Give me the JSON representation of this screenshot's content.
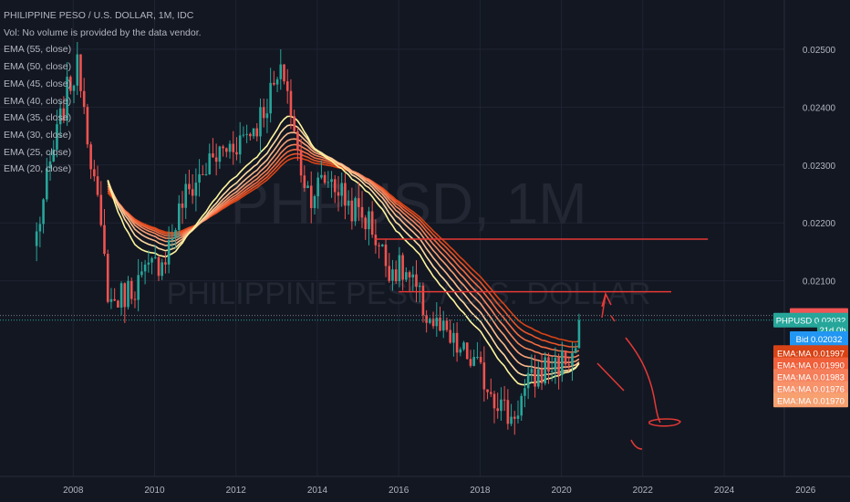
{
  "header": {
    "title": "PHILIPPINE PESO / U.S. DOLLAR, 1M, IDC",
    "volume_note": "Vol: No volume is provided by the data vendor."
  },
  "legend": {
    "items": [
      "EMA (55, close)",
      "EMA (50, close)",
      "EMA (45, close)",
      "EMA (40, close)",
      "EMA (35, close)",
      "EMA (30, close)",
      "EMA (25, close)",
      "EMA (20, close)"
    ]
  },
  "watermark": {
    "symbol": "PHPUSD, 1M",
    "name": "PHILIPPINE PESO / U.S. DOLLAR"
  },
  "colors": {
    "background": "#131722",
    "candle_up": "#26a69a",
    "candle_down": "#ef5350",
    "ema_light": "#fff59d",
    "ema_dark": "#d84315",
    "drawing": "#e53935",
    "ask": "#f05454",
    "price": "#26a69a",
    "bid": "#2196f3"
  },
  "price_labels": [
    {
      "id": "ask",
      "text": "Ask",
      "value": "0.02040",
      "color": "#f05454",
      "y_value": 0.0204
    },
    {
      "id": "last",
      "text": "PHPUSD",
      "value": "0.02032",
      "color": "#26a69a",
      "y_value": 0.02032
    },
    {
      "id": "countdown",
      "text": "21d 0h",
      "value": "",
      "color": "#26a69a",
      "y_value": 0.02016
    },
    {
      "id": "bid",
      "text": "Bid",
      "value": "0.02032",
      "color": "#2196f3",
      "y_value": 0.02
    },
    {
      "id": "ema-1",
      "text": "EMA:MA",
      "value": "0.01997",
      "color": "#d84315",
      "y_value": 0.01976
    },
    {
      "id": "ema-2",
      "text": "EMA:MA",
      "value": "0.01990",
      "color": "#f0603a",
      "y_value": 0.01955
    },
    {
      "id": "ema-3",
      "text": "EMA:MA",
      "value": "0.01983",
      "color": "#f57f5b",
      "y_value": 0.01935
    },
    {
      "id": "ema-4",
      "text": "EMA:MA",
      "value": "0.01976",
      "color": "#f7926a",
      "y_value": 0.01914
    },
    {
      "id": "ema-5",
      "text": "EMA:MA",
      "value": "0.01970",
      "color": "#f7a070",
      "y_value": 0.01894
    }
  ],
  "drawings": {
    "resistance_1": {
      "x_range": [
        2015.4,
        2023.6
      ],
      "y": 0.02172
    },
    "resistance_2": {
      "x_range": [
        2016.0,
        2022.7
      ],
      "y": 0.02081
    }
  },
  "chart_data": {
    "type": "candlestick",
    "x_axis": {
      "range": [
        2006.2,
        2026.6
      ],
      "ticks": [
        2008,
        2010,
        2012,
        2014,
        2016,
        2018,
        2020,
        2022,
        2024,
        2026
      ],
      "tick_labels": [
        "2008",
        "2010",
        "2012",
        "2014",
        "2016",
        "2018",
        "2020",
        "2022",
        "2024",
        "2026"
      ]
    },
    "y_axis": {
      "range": [
        0.01762,
        0.02585
      ],
      "ticks": [
        0.021,
        0.022,
        0.023,
        0.024,
        0.025
      ],
      "tick_labels": [
        "0.02100",
        "0.02200",
        "0.02300",
        "0.02400",
        "0.02500"
      ],
      "side": "right"
    },
    "grid": true,
    "anchors": [
      [
        2007.1,
        0.0218
      ],
      [
        2007.5,
        0.0232
      ],
      [
        2007.9,
        0.0244
      ],
      [
        2008.15,
        0.0247
      ],
      [
        2008.5,
        0.0228
      ],
      [
        2008.9,
        0.0206
      ],
      [
        2009.3,
        0.0208
      ],
      [
        2009.8,
        0.0211
      ],
      [
        2010.3,
        0.0215
      ],
      [
        2010.7,
        0.0224
      ],
      [
        2011.2,
        0.0229
      ],
      [
        2011.6,
        0.0232
      ],
      [
        2012.0,
        0.0234
      ],
      [
        2012.5,
        0.0237
      ],
      [
        2012.9,
        0.0243
      ],
      [
        2013.2,
        0.0246
      ],
      [
        2013.5,
        0.0232
      ],
      [
        2013.8,
        0.0225
      ],
      [
        2014.3,
        0.0228
      ],
      [
        2014.8,
        0.0223
      ],
      [
        2015.3,
        0.022
      ],
      [
        2015.7,
        0.0213
      ],
      [
        2016.2,
        0.0211
      ],
      [
        2016.7,
        0.0204
      ],
      [
        2017.3,
        0.0199
      ],
      [
        2017.8,
        0.0196
      ],
      [
        2018.3,
        0.0191
      ],
      [
        2018.75,
        0.0186
      ],
      [
        2019.2,
        0.0192
      ],
      [
        2019.6,
        0.0195
      ],
      [
        2020.0,
        0.0196
      ],
      [
        2020.3,
        0.0197
      ],
      [
        2020.5,
        0.0203
      ]
    ],
    "ema_periods": [
      55,
      50,
      45,
      40,
      35,
      30,
      25,
      20
    ],
    "last": {
      "ask": 0.0204,
      "close": 0.02032,
      "bid": 0.02032
    }
  }
}
